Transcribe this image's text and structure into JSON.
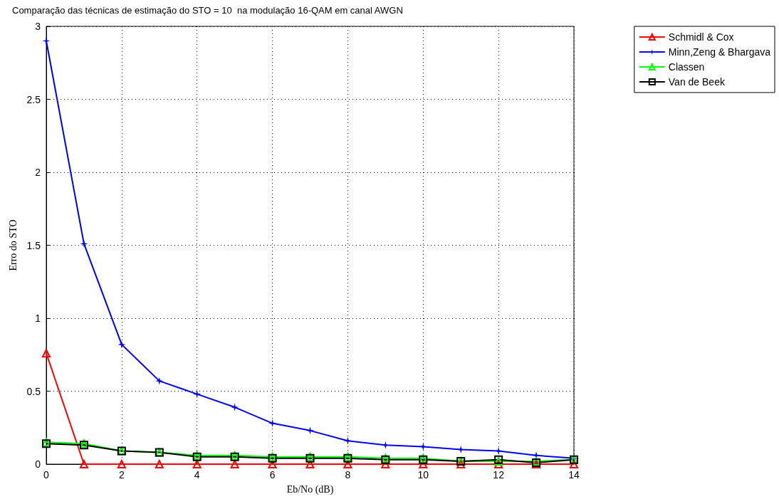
{
  "chart_data": {
    "type": "line",
    "title": "Comparação das técnicas de estimação do STO = 10  na modulação 16-QAM em canal AWGN",
    "xlabel": "Eb/No (dB)",
    "ylabel": "Erro do STO",
    "x": [
      0,
      1,
      2,
      3,
      4,
      5,
      6,
      7,
      8,
      9,
      10,
      11,
      12,
      13,
      14
    ],
    "series": [
      {
        "name": "Schmidl & Cox",
        "color": "#ff0000",
        "marker": "triangle",
        "values": [
          0.76,
          0,
          0,
          0,
          0,
          0,
          0,
          0,
          0,
          0,
          0,
          0,
          0,
          0,
          0
        ]
      },
      {
        "name": "Minn,Zeng & Bhargava",
        "color": "#0000ff",
        "marker": "star",
        "values": [
          2.9,
          1.51,
          0.82,
          0.57,
          0.48,
          0.39,
          0.28,
          0.23,
          0.16,
          0.13,
          0.12,
          0.1,
          0.09,
          0.06,
          0.04
        ]
      },
      {
        "name": "Classen",
        "color": "#00ff00",
        "marker": "triangle",
        "values": [
          0.15,
          0.14,
          0.09,
          0.08,
          0.06,
          0.06,
          0.05,
          0.05,
          0.05,
          0.04,
          0.04,
          0.02,
          0.02,
          0.02,
          0.03
        ]
      },
      {
        "name": "Van de Beek",
        "color": "#000000",
        "marker": "square",
        "values": [
          0.14,
          0.13,
          0.09,
          0.08,
          0.05,
          0.05,
          0.04,
          0.04,
          0.04,
          0.03,
          0.03,
          0.02,
          0.03,
          0.01,
          0.03
        ]
      }
    ],
    "xlim": [
      0,
      14
    ],
    "xticks": [
      0,
      2,
      4,
      6,
      8,
      10,
      12,
      14
    ],
    "ylim": [
      0,
      3
    ],
    "yticks": [
      0,
      0.5,
      1,
      1.5,
      2,
      2.5,
      3
    ],
    "grid": true,
    "legend": "top right",
    "line_style": "solid"
  }
}
